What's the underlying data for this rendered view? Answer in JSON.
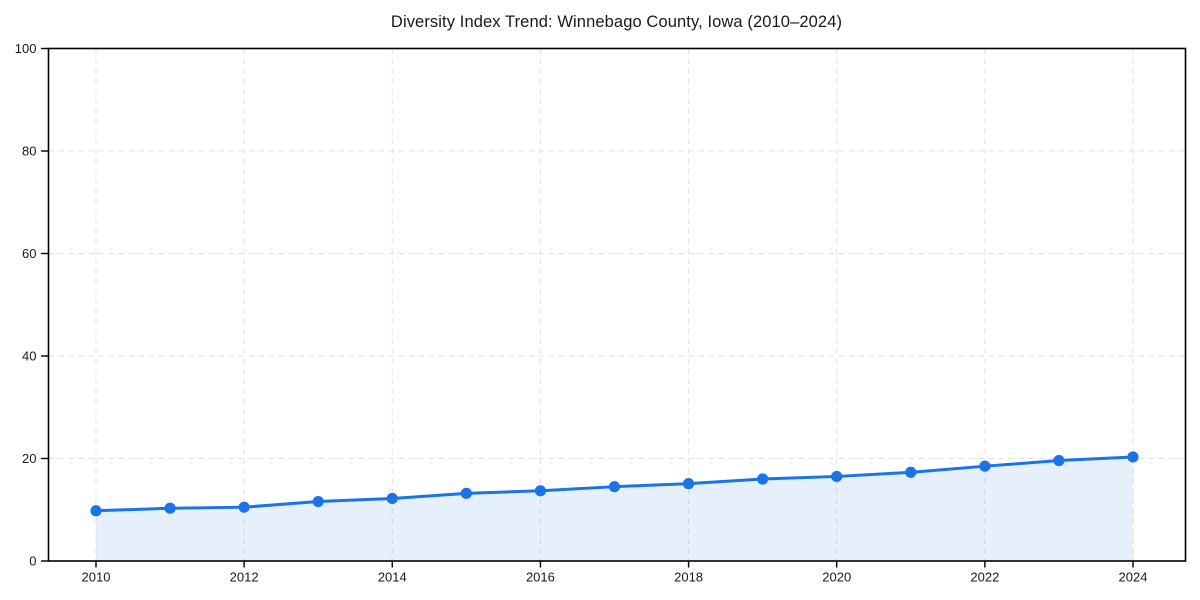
{
  "page": {
    "background_color": "#ffffff"
  },
  "chart_data": {
    "type": "line",
    "subtype": "area-filled-line-with-markers",
    "title": "Diversity Index Trend: Winnebago County, Iowa (2010–2024)",
    "x": [
      2010,
      2011,
      2012,
      2013,
      2014,
      2015,
      2016,
      2017,
      2018,
      2019,
      2020,
      2021,
      2022,
      2023,
      2024
    ],
    "series": [
      {
        "name": "Diversity Index",
        "values": [
          9.8,
          10.3,
          10.5,
          11.6,
          12.2,
          13.2,
          13.7,
          14.5,
          15.1,
          16.0,
          16.5,
          17.3,
          18.5,
          19.6,
          20.3
        ]
      }
    ],
    "xlabel": "",
    "ylabel": "",
    "xlim": [
      2010,
      2024
    ],
    "ylim": [
      0,
      100
    ],
    "xticks": [
      2010,
      2012,
      2014,
      2016,
      2018,
      2020,
      2022,
      2024
    ],
    "yticks": [
      0,
      20,
      40,
      60,
      80,
      100
    ],
    "grid": "dashed gridlines at labeled x and y ticks",
    "legend": "none",
    "marker": "circle",
    "colors": {
      "line": "#1a73e8",
      "marker": "#1a73e8",
      "area_fill": "rgba(26,115,232,0.11)",
      "grid": "#e1e1e1",
      "axis": "#000000",
      "tick_text": "#1a1a1a",
      "title_text": "#1a1a1a"
    }
  }
}
